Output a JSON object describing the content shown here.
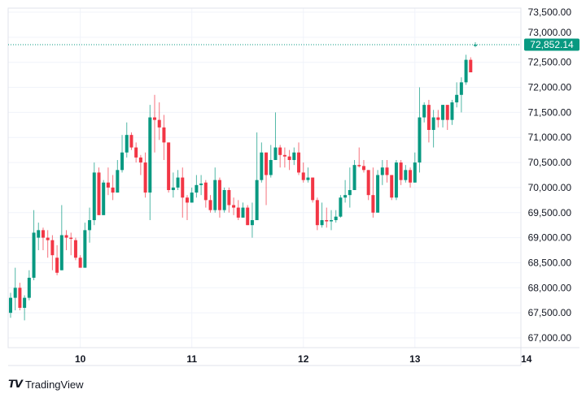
{
  "chart_data": {
    "type": "candlestick",
    "interval": "1h",
    "x_labels": [
      "10",
      "11",
      "12",
      "13",
      "14"
    ],
    "x_label_candle_index": [
      15,
      39,
      63,
      87,
      111
    ],
    "y_ticks": [
      67000,
      67500,
      68000,
      68500,
      69000,
      69500,
      70000,
      70500,
      71000,
      71500,
      72000,
      72500,
      73000,
      73500
    ],
    "ylim": [
      66850,
      73700
    ],
    "grid": true,
    "last_price": 72852.14,
    "last_price_label": "72,852.14",
    "colors": {
      "up": "#089981",
      "down": "#F23645",
      "grid": "#F0F3FA",
      "axis_text": "#131722"
    },
    "candles_ohlc": [
      [
        67500,
        67900,
        67400,
        67800
      ],
      [
        67800,
        68400,
        67550,
        68000
      ],
      [
        68000,
        68100,
        67550,
        67600
      ],
      [
        67600,
        67850,
        67350,
        67800
      ],
      [
        67800,
        68350,
        67750,
        68200
      ],
      [
        68200,
        69550,
        68150,
        69100
      ],
      [
        69000,
        69300,
        68750,
        69150
      ],
      [
        69150,
        69200,
        68750,
        69000
      ],
      [
        69000,
        69150,
        68600,
        68950
      ],
      [
        68950,
        69050,
        68350,
        68650
      ],
      [
        68600,
        68850,
        68250,
        68300
      ],
      [
        68350,
        69650,
        68350,
        69050
      ],
      [
        69050,
        69150,
        68750,
        69000
      ],
      [
        69000,
        69100,
        68650,
        68980
      ],
      [
        68950,
        69000,
        68550,
        68600
      ],
      [
        68600,
        68650,
        68400,
        68400
      ],
      [
        68400,
        69300,
        68400,
        69150
      ],
      [
        69150,
        69600,
        68900,
        69350
      ],
      [
        69350,
        70500,
        69250,
        70300
      ],
      [
        70300,
        70400,
        69450,
        69450
      ],
      [
        69450,
        70150,
        69450,
        70100
      ],
      [
        70100,
        70400,
        69850,
        70000
      ],
      [
        70000,
        70250,
        69750,
        69900
      ],
      [
        69900,
        70550,
        69900,
        70350
      ],
      [
        70350,
        71050,
        70300,
        70700
      ],
      [
        70700,
        71300,
        70600,
        71050
      ],
      [
        71050,
        71100,
        70750,
        70800
      ],
      [
        70800,
        70900,
        70500,
        70600
      ],
      [
        70600,
        70650,
        70250,
        70500
      ],
      [
        70500,
        70700,
        69800,
        69900
      ],
      [
        69900,
        71650,
        69350,
        71400
      ],
      [
        71400,
        71850,
        70700,
        71350
      ],
      [
        71350,
        71700,
        70950,
        71200
      ],
      [
        71200,
        71450,
        70550,
        70900
      ],
      [
        70900,
        70900,
        69900,
        69950
      ],
      [
        69950,
        70300,
        69800,
        70000
      ],
      [
        70000,
        70350,
        69950,
        70200
      ],
      [
        70200,
        70400,
        69400,
        69800
      ],
      [
        69800,
        69850,
        69350,
        69700
      ],
      [
        69700,
        70000,
        69700,
        69900
      ],
      [
        69900,
        70250,
        69800,
        70050
      ],
      [
        70050,
        70250,
        69850,
        70080
      ],
      [
        70100,
        70150,
        69600,
        69750
      ],
      [
        69750,
        69850,
        69500,
        69550
      ],
      [
        69550,
        70400,
        69500,
        70150
      ],
      [
        70150,
        70200,
        69400,
        69550
      ],
      [
        69550,
        70000,
        69500,
        69950
      ],
      [
        69950,
        70000,
        69500,
        69650
      ],
      [
        69650,
        69800,
        69450,
        69600
      ],
      [
        69600,
        69750,
        69350,
        69400
      ],
      [
        69400,
        69700,
        69400,
        69600
      ],
      [
        69600,
        69650,
        69250,
        69250
      ],
      [
        69250,
        69700,
        69000,
        69350
      ],
      [
        69350,
        71100,
        69350,
        70150
      ],
      [
        70150,
        70900,
        70100,
        70700
      ],
      [
        70700,
        70700,
        69650,
        70250
      ],
      [
        70250,
        70850,
        70200,
        70550
      ],
      [
        70550,
        71500,
        70550,
        70800
      ],
      [
        70800,
        70850,
        70400,
        70650
      ],
      [
        70650,
        70800,
        70400,
        70620
      ],
      [
        70620,
        70750,
        70350,
        70550
      ],
      [
        70550,
        70800,
        70450,
        70700
      ],
      [
        70700,
        70900,
        70250,
        70300
      ],
      [
        70300,
        70500,
        70100,
        70150
      ],
      [
        70150,
        70400,
        70100,
        70200
      ],
      [
        70200,
        70200,
        69700,
        69750
      ],
      [
        69750,
        69800,
        69150,
        69250
      ],
      [
        69250,
        69700,
        69200,
        69350
      ],
      [
        69350,
        69600,
        69200,
        69330
      ],
      [
        69330,
        69550,
        69150,
        69350
      ],
      [
        69350,
        69550,
        69300,
        69420
      ],
      [
        69420,
        69850,
        69400,
        69800
      ],
      [
        69800,
        70150,
        69700,
        69850
      ],
      [
        69850,
        70400,
        69600,
        69950
      ],
      [
        69950,
        70550,
        69950,
        70450
      ],
      [
        70450,
        70800,
        70400,
        70430
      ],
      [
        70430,
        70550,
        70300,
        70350
      ],
      [
        70350,
        70350,
        69750,
        69850
      ],
      [
        69850,
        70400,
        69400,
        69500
      ],
      [
        69500,
        70350,
        69500,
        70250
      ],
      [
        70250,
        70550,
        70050,
        70400
      ],
      [
        70400,
        70550,
        70100,
        70250
      ],
      [
        70250,
        70250,
        69750,
        69800
      ],
      [
        69800,
        70550,
        69750,
        70500
      ],
      [
        70500,
        70550,
        70050,
        70150
      ],
      [
        70150,
        70450,
        70100,
        70350
      ],
      [
        70350,
        70400,
        70000,
        70100
      ],
      [
        70100,
        70700,
        70100,
        70500
      ],
      [
        70500,
        72000,
        70300,
        71400
      ],
      [
        71400,
        71700,
        71300,
        71650
      ],
      [
        71650,
        71750,
        70900,
        71150
      ],
      [
        71150,
        71550,
        70800,
        71400
      ],
      [
        71400,
        71550,
        71200,
        71350
      ],
      [
        71350,
        71650,
        71200,
        71650
      ],
      [
        71650,
        71650,
        71150,
        71350
      ],
      [
        71350,
        71750,
        71250,
        71700
      ],
      [
        71700,
        72100,
        71600,
        71850
      ],
      [
        71850,
        72200,
        71500,
        72100
      ],
      [
        72100,
        72650,
        72050,
        72550
      ],
      [
        72550,
        72600,
        72300,
        72300
      ],
      [
        72830,
        72900,
        72800,
        72852
      ]
    ]
  },
  "branding": {
    "logo_text": "TradingView",
    "logo_mark": "TV"
  }
}
